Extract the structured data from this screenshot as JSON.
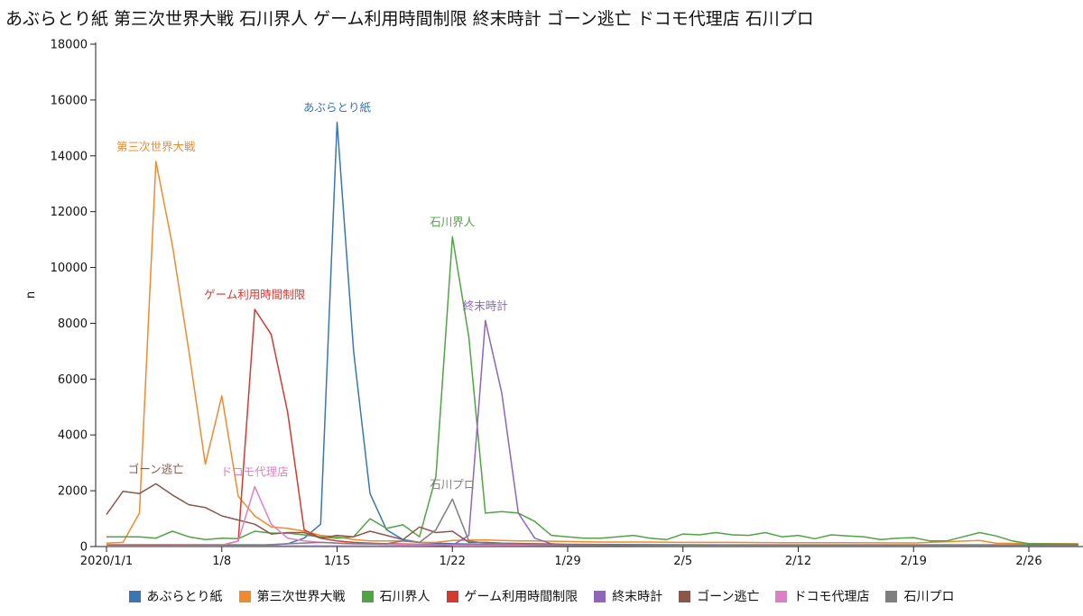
{
  "chart_data": {
    "type": "line",
    "title": "あぶらとり紙 第三次世界大戦 石川界人 ゲーム利用時間制限 終末時計 ゴーン逃亡 ドコモ代理店 石川プロ",
    "xlabel": "",
    "ylabel": "n",
    "ylim": [
      0,
      18000
    ],
    "xlim": [
      "2020-01-01",
      "2020-02-29"
    ],
    "grid": false,
    "legend_position": "bottom",
    "y_ticks": [
      0,
      2000,
      4000,
      6000,
      8000,
      10000,
      12000,
      14000,
      16000,
      18000
    ],
    "y_tick_labels": [
      "0",
      "2000",
      "4000",
      "6000",
      "8000",
      "10000",
      "12000",
      "14000",
      "16000",
      "18000"
    ],
    "x_ticks": [
      "2020-01-01",
      "2020-01-08",
      "2020-01-15",
      "2020-01-22",
      "2020-01-29",
      "2020-02-05",
      "2020-02-12",
      "2020-02-19",
      "2020-02-26"
    ],
    "x_tick_labels": [
      "2020/1/1",
      "1/8",
      "1/15",
      "1/22",
      "1/29",
      "2/5",
      "2/12",
      "2/19",
      "2/26"
    ],
    "series": [
      {
        "name": "あぶらとり紙",
        "color": "#3a77b0",
        "annotation": "あぶらとり紙",
        "peak_date": "2020-01-15",
        "points": [
          [
            "2020-01-01",
            60
          ],
          [
            "2020-01-02",
            60
          ],
          [
            "2020-01-03",
            60
          ],
          [
            "2020-01-04",
            60
          ],
          [
            "2020-01-05",
            60
          ],
          [
            "2020-01-06",
            60
          ],
          [
            "2020-01-07",
            60
          ],
          [
            "2020-01-08",
            60
          ],
          [
            "2020-01-09",
            60
          ],
          [
            "2020-01-10",
            60
          ],
          [
            "2020-01-11",
            60
          ],
          [
            "2020-01-12",
            100
          ],
          [
            "2020-01-13",
            300
          ],
          [
            "2020-01-14",
            800
          ],
          [
            "2020-01-15",
            15200
          ],
          [
            "2020-01-16",
            7000
          ],
          [
            "2020-01-17",
            1900
          ],
          [
            "2020-01-18",
            600
          ],
          [
            "2020-01-19",
            250
          ],
          [
            "2020-01-20",
            150
          ],
          [
            "2020-01-21",
            120
          ],
          [
            "2020-01-22",
            100
          ],
          [
            "2020-01-23",
            90
          ],
          [
            "2020-01-24",
            80
          ],
          [
            "2020-01-25",
            80
          ],
          [
            "2020-01-26",
            70
          ],
          [
            "2020-01-27",
            70
          ],
          [
            "2020-01-28",
            60
          ],
          [
            "2020-01-29",
            60
          ],
          [
            "2020-01-30",
            60
          ],
          [
            "2020-02-01",
            60
          ],
          [
            "2020-02-05",
            60
          ],
          [
            "2020-02-10",
            60
          ],
          [
            "2020-02-15",
            60
          ],
          [
            "2020-02-20",
            60
          ],
          [
            "2020-02-25",
            60
          ],
          [
            "2020-02-29",
            60
          ]
        ]
      },
      {
        "name": "第三次世界大戦",
        "color": "#ef8a2f",
        "annotation": "第三次世界大戦",
        "peak_date": "2020-01-04",
        "points": [
          [
            "2020-01-01",
            120
          ],
          [
            "2020-01-02",
            150
          ],
          [
            "2020-01-03",
            1200
          ],
          [
            "2020-01-04",
            13800
          ],
          [
            "2020-01-05",
            10800
          ],
          [
            "2020-01-06",
            7000
          ],
          [
            "2020-01-07",
            2950
          ],
          [
            "2020-01-08",
            5400
          ],
          [
            "2020-01-09",
            1800
          ],
          [
            "2020-01-10",
            1100
          ],
          [
            "2020-01-11",
            700
          ],
          [
            "2020-01-12",
            650
          ],
          [
            "2020-01-13",
            550
          ],
          [
            "2020-01-14",
            400
          ],
          [
            "2020-01-15",
            350
          ],
          [
            "2020-01-16",
            250
          ],
          [
            "2020-01-17",
            200
          ],
          [
            "2020-01-18",
            200
          ],
          [
            "2020-01-19",
            200
          ],
          [
            "2020-01-20",
            150
          ],
          [
            "2020-01-21",
            150
          ],
          [
            "2020-01-22",
            220
          ],
          [
            "2020-01-23",
            230
          ],
          [
            "2020-01-24",
            240
          ],
          [
            "2020-01-25",
            220
          ],
          [
            "2020-01-26",
            200
          ],
          [
            "2020-01-27",
            200
          ],
          [
            "2020-01-28",
            190
          ],
          [
            "2020-01-29",
            180
          ],
          [
            "2020-01-31",
            160
          ],
          [
            "2020-02-03",
            160
          ],
          [
            "2020-02-05",
            150
          ],
          [
            "2020-02-08",
            150
          ],
          [
            "2020-02-11",
            140
          ],
          [
            "2020-02-15",
            140
          ],
          [
            "2020-02-19",
            130
          ],
          [
            "2020-02-23",
            220
          ],
          [
            "2020-02-24",
            120
          ],
          [
            "2020-02-26",
            110
          ],
          [
            "2020-02-29",
            100
          ]
        ]
      },
      {
        "name": "石川界人",
        "color": "#4fa443",
        "annotation": "石川界人",
        "peak_date": "2020-01-22",
        "points": [
          [
            "2020-01-01",
            350
          ],
          [
            "2020-01-02",
            350
          ],
          [
            "2020-01-03",
            350
          ],
          [
            "2020-01-04",
            300
          ],
          [
            "2020-01-05",
            550
          ],
          [
            "2020-01-06",
            350
          ],
          [
            "2020-01-07",
            250
          ],
          [
            "2020-01-08",
            300
          ],
          [
            "2020-01-09",
            280
          ],
          [
            "2020-01-10",
            550
          ],
          [
            "2020-01-11",
            480
          ],
          [
            "2020-01-12",
            480
          ],
          [
            "2020-01-13",
            420
          ],
          [
            "2020-01-14",
            350
          ],
          [
            "2020-01-15",
            300
          ],
          [
            "2020-01-16",
            350
          ],
          [
            "2020-01-17",
            1000
          ],
          [
            "2020-01-18",
            650
          ],
          [
            "2020-01-19",
            780
          ],
          [
            "2020-01-20",
            350
          ],
          [
            "2020-01-21",
            2500
          ],
          [
            "2020-01-22",
            11100
          ],
          [
            "2020-01-23",
            7500
          ],
          [
            "2020-01-24",
            1200
          ],
          [
            "2020-01-25",
            1250
          ],
          [
            "2020-01-26",
            1200
          ],
          [
            "2020-01-27",
            900
          ],
          [
            "2020-01-28",
            400
          ],
          [
            "2020-01-29",
            350
          ],
          [
            "2020-01-30",
            300
          ],
          [
            "2020-01-31",
            300
          ],
          [
            "2020-02-01",
            350
          ],
          [
            "2020-02-02",
            400
          ],
          [
            "2020-02-03",
            300
          ],
          [
            "2020-02-04",
            250
          ],
          [
            "2020-02-05",
            450
          ],
          [
            "2020-02-06",
            420
          ],
          [
            "2020-02-07",
            500
          ],
          [
            "2020-02-08",
            420
          ],
          [
            "2020-02-09",
            400
          ],
          [
            "2020-02-10",
            500
          ],
          [
            "2020-02-11",
            350
          ],
          [
            "2020-02-12",
            400
          ],
          [
            "2020-02-13",
            280
          ],
          [
            "2020-02-14",
            420
          ],
          [
            "2020-02-15",
            380
          ],
          [
            "2020-02-16",
            350
          ],
          [
            "2020-02-17",
            250
          ],
          [
            "2020-02-18",
            300
          ],
          [
            "2020-02-19",
            320
          ],
          [
            "2020-02-20",
            200
          ],
          [
            "2020-02-21",
            200
          ],
          [
            "2020-02-22",
            350
          ],
          [
            "2020-02-23",
            500
          ],
          [
            "2020-02-24",
            380
          ],
          [
            "2020-02-25",
            200
          ],
          [
            "2020-02-26",
            100
          ],
          [
            "2020-02-29",
            80
          ]
        ]
      },
      {
        "name": "ゲーム利用時間制限",
        "color": "#d23a32",
        "annotation": "ゲーム利用時間制限",
        "peak_date": "2020-01-10",
        "points": [
          [
            "2020-01-01",
            50
          ],
          [
            "2020-01-03",
            50
          ],
          [
            "2020-01-05",
            50
          ],
          [
            "2020-01-07",
            50
          ],
          [
            "2020-01-08",
            50
          ],
          [
            "2020-01-09",
            200
          ],
          [
            "2020-01-10",
            8500
          ],
          [
            "2020-01-11",
            7600
          ],
          [
            "2020-01-12",
            4800
          ],
          [
            "2020-01-13",
            600
          ],
          [
            "2020-01-14",
            300
          ],
          [
            "2020-01-15",
            200
          ],
          [
            "2020-01-16",
            150
          ],
          [
            "2020-01-17",
            120
          ],
          [
            "2020-01-18",
            100
          ],
          [
            "2020-01-20",
            80
          ],
          [
            "2020-01-22",
            70
          ],
          [
            "2020-01-25",
            60
          ],
          [
            "2020-01-29",
            50
          ],
          [
            "2020-02-05",
            50
          ],
          [
            "2020-02-12",
            50
          ],
          [
            "2020-02-19",
            50
          ],
          [
            "2020-02-26",
            50
          ],
          [
            "2020-02-29",
            50
          ]
        ]
      },
      {
        "name": "終末時計",
        "color": "#8f66b8",
        "annotation": "終末時計",
        "peak_date": "2020-01-24",
        "points": [
          [
            "2020-01-01",
            20
          ],
          [
            "2020-01-05",
            20
          ],
          [
            "2020-01-10",
            20
          ],
          [
            "2020-01-15",
            20
          ],
          [
            "2020-01-20",
            20
          ],
          [
            "2020-01-22",
            50
          ],
          [
            "2020-01-23",
            400
          ],
          [
            "2020-01-24",
            8100
          ],
          [
            "2020-01-25",
            5500
          ],
          [
            "2020-01-26",
            1200
          ],
          [
            "2020-01-27",
            300
          ],
          [
            "2020-01-28",
            100
          ],
          [
            "2020-01-29",
            60
          ],
          [
            "2020-02-01",
            40
          ],
          [
            "2020-02-05",
            30
          ],
          [
            "2020-02-12",
            30
          ],
          [
            "2020-02-19",
            30
          ],
          [
            "2020-02-26",
            30
          ],
          [
            "2020-02-29",
            30
          ]
        ]
      },
      {
        "name": "ゴーン逃亡",
        "color": "#8c564b",
        "annotation": "ゴーン逃亡",
        "peak_date": "2020-01-04",
        "points": [
          [
            "2020-01-01",
            1150
          ],
          [
            "2020-01-02",
            1980
          ],
          [
            "2020-01-03",
            1900
          ],
          [
            "2020-01-04",
            2250
          ],
          [
            "2020-01-05",
            1850
          ],
          [
            "2020-01-06",
            1500
          ],
          [
            "2020-01-07",
            1400
          ],
          [
            "2020-01-08",
            1100
          ],
          [
            "2020-01-09",
            950
          ],
          [
            "2020-01-10",
            800
          ],
          [
            "2020-01-11",
            450
          ],
          [
            "2020-01-12",
            500
          ],
          [
            "2020-01-13",
            500
          ],
          [
            "2020-01-14",
            300
          ],
          [
            "2020-01-15",
            400
          ],
          [
            "2020-01-16",
            350
          ],
          [
            "2020-01-17",
            550
          ],
          [
            "2020-01-18",
            400
          ],
          [
            "2020-01-19",
            250
          ],
          [
            "2020-01-20",
            700
          ],
          [
            "2020-01-21",
            500
          ],
          [
            "2020-01-22",
            550
          ],
          [
            "2020-01-23",
            150
          ],
          [
            "2020-01-24",
            150
          ],
          [
            "2020-01-25",
            120
          ],
          [
            "2020-01-27",
            100
          ],
          [
            "2020-01-29",
            80
          ],
          [
            "2020-02-05",
            60
          ],
          [
            "2020-02-12",
            50
          ],
          [
            "2020-02-19",
            50
          ],
          [
            "2020-02-26",
            40
          ],
          [
            "2020-02-29",
            40
          ]
        ]
      },
      {
        "name": "ドコモ代理店",
        "color": "#de7fc4",
        "annotation": "ドコモ代理店",
        "peak_date": "2020-01-10",
        "points": [
          [
            "2020-01-01",
            30
          ],
          [
            "2020-01-05",
            30
          ],
          [
            "2020-01-08",
            40
          ],
          [
            "2020-01-09",
            200
          ],
          [
            "2020-01-10",
            2150
          ],
          [
            "2020-01-11",
            800
          ],
          [
            "2020-01-12",
            300
          ],
          [
            "2020-01-13",
            200
          ],
          [
            "2020-01-14",
            150
          ],
          [
            "2020-01-15",
            120
          ],
          [
            "2020-01-16",
            100
          ],
          [
            "2020-01-18",
            80
          ],
          [
            "2020-01-20",
            60
          ],
          [
            "2020-01-25",
            50
          ],
          [
            "2020-01-29",
            40
          ],
          [
            "2020-02-05",
            40
          ],
          [
            "2020-02-12",
            40
          ],
          [
            "2020-02-19",
            40
          ],
          [
            "2020-02-26",
            40
          ],
          [
            "2020-02-29",
            40
          ]
        ]
      },
      {
        "name": "石川プロ",
        "color": "#7f7f7f",
        "annotation": "石川プロ",
        "peak_date": "2020-01-22",
        "points": [
          [
            "2020-01-01",
            30
          ],
          [
            "2020-01-05",
            30
          ],
          [
            "2020-01-10",
            40
          ],
          [
            "2020-01-12",
            100
          ],
          [
            "2020-01-14",
            150
          ],
          [
            "2020-01-16",
            100
          ],
          [
            "2020-01-18",
            100
          ],
          [
            "2020-01-19",
            200
          ],
          [
            "2020-01-20",
            150
          ],
          [
            "2020-01-21",
            600
          ],
          [
            "2020-01-22",
            1700
          ],
          [
            "2020-01-23",
            200
          ],
          [
            "2020-01-24",
            120
          ],
          [
            "2020-01-25",
            100
          ],
          [
            "2020-01-27",
            80
          ],
          [
            "2020-01-29",
            60
          ],
          [
            "2020-02-05",
            50
          ],
          [
            "2020-02-12",
            50
          ],
          [
            "2020-02-19",
            50
          ],
          [
            "2020-02-26",
            40
          ],
          [
            "2020-02-29",
            40
          ]
        ]
      }
    ]
  }
}
